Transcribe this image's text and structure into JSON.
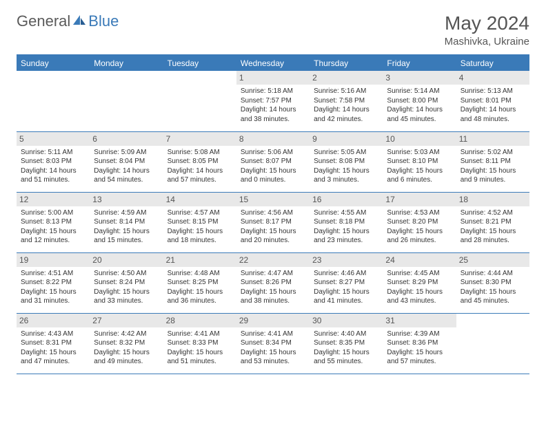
{
  "brand": {
    "part1": "General",
    "part2": "Blue"
  },
  "title": "May 2024",
  "location": "Mashivka, Ukraine",
  "colors": {
    "accent": "#3a7ab8",
    "header_bg": "#3a7ab8",
    "header_text": "#ffffff",
    "daynum_bg": "#e8e8e8",
    "text": "#333333",
    "muted": "#555555",
    "background": "#ffffff"
  },
  "dayNames": [
    "Sunday",
    "Monday",
    "Tuesday",
    "Wednesday",
    "Thursday",
    "Friday",
    "Saturday"
  ],
  "weeks": [
    [
      {
        "n": "",
        "sr": "",
        "ss": "",
        "dl": ""
      },
      {
        "n": "",
        "sr": "",
        "ss": "",
        "dl": ""
      },
      {
        "n": "",
        "sr": "",
        "ss": "",
        "dl": ""
      },
      {
        "n": "1",
        "sr": "Sunrise: 5:18 AM",
        "ss": "Sunset: 7:57 PM",
        "dl": "Daylight: 14 hours and 38 minutes."
      },
      {
        "n": "2",
        "sr": "Sunrise: 5:16 AM",
        "ss": "Sunset: 7:58 PM",
        "dl": "Daylight: 14 hours and 42 minutes."
      },
      {
        "n": "3",
        "sr": "Sunrise: 5:14 AM",
        "ss": "Sunset: 8:00 PM",
        "dl": "Daylight: 14 hours and 45 minutes."
      },
      {
        "n": "4",
        "sr": "Sunrise: 5:13 AM",
        "ss": "Sunset: 8:01 PM",
        "dl": "Daylight: 14 hours and 48 minutes."
      }
    ],
    [
      {
        "n": "5",
        "sr": "Sunrise: 5:11 AM",
        "ss": "Sunset: 8:03 PM",
        "dl": "Daylight: 14 hours and 51 minutes."
      },
      {
        "n": "6",
        "sr": "Sunrise: 5:09 AM",
        "ss": "Sunset: 8:04 PM",
        "dl": "Daylight: 14 hours and 54 minutes."
      },
      {
        "n": "7",
        "sr": "Sunrise: 5:08 AM",
        "ss": "Sunset: 8:05 PM",
        "dl": "Daylight: 14 hours and 57 minutes."
      },
      {
        "n": "8",
        "sr": "Sunrise: 5:06 AM",
        "ss": "Sunset: 8:07 PM",
        "dl": "Daylight: 15 hours and 0 minutes."
      },
      {
        "n": "9",
        "sr": "Sunrise: 5:05 AM",
        "ss": "Sunset: 8:08 PM",
        "dl": "Daylight: 15 hours and 3 minutes."
      },
      {
        "n": "10",
        "sr": "Sunrise: 5:03 AM",
        "ss": "Sunset: 8:10 PM",
        "dl": "Daylight: 15 hours and 6 minutes."
      },
      {
        "n": "11",
        "sr": "Sunrise: 5:02 AM",
        "ss": "Sunset: 8:11 PM",
        "dl": "Daylight: 15 hours and 9 minutes."
      }
    ],
    [
      {
        "n": "12",
        "sr": "Sunrise: 5:00 AM",
        "ss": "Sunset: 8:13 PM",
        "dl": "Daylight: 15 hours and 12 minutes."
      },
      {
        "n": "13",
        "sr": "Sunrise: 4:59 AM",
        "ss": "Sunset: 8:14 PM",
        "dl": "Daylight: 15 hours and 15 minutes."
      },
      {
        "n": "14",
        "sr": "Sunrise: 4:57 AM",
        "ss": "Sunset: 8:15 PM",
        "dl": "Daylight: 15 hours and 18 minutes."
      },
      {
        "n": "15",
        "sr": "Sunrise: 4:56 AM",
        "ss": "Sunset: 8:17 PM",
        "dl": "Daylight: 15 hours and 20 minutes."
      },
      {
        "n": "16",
        "sr": "Sunrise: 4:55 AM",
        "ss": "Sunset: 8:18 PM",
        "dl": "Daylight: 15 hours and 23 minutes."
      },
      {
        "n": "17",
        "sr": "Sunrise: 4:53 AM",
        "ss": "Sunset: 8:20 PM",
        "dl": "Daylight: 15 hours and 26 minutes."
      },
      {
        "n": "18",
        "sr": "Sunrise: 4:52 AM",
        "ss": "Sunset: 8:21 PM",
        "dl": "Daylight: 15 hours and 28 minutes."
      }
    ],
    [
      {
        "n": "19",
        "sr": "Sunrise: 4:51 AM",
        "ss": "Sunset: 8:22 PM",
        "dl": "Daylight: 15 hours and 31 minutes."
      },
      {
        "n": "20",
        "sr": "Sunrise: 4:50 AM",
        "ss": "Sunset: 8:24 PM",
        "dl": "Daylight: 15 hours and 33 minutes."
      },
      {
        "n": "21",
        "sr": "Sunrise: 4:48 AM",
        "ss": "Sunset: 8:25 PM",
        "dl": "Daylight: 15 hours and 36 minutes."
      },
      {
        "n": "22",
        "sr": "Sunrise: 4:47 AM",
        "ss": "Sunset: 8:26 PM",
        "dl": "Daylight: 15 hours and 38 minutes."
      },
      {
        "n": "23",
        "sr": "Sunrise: 4:46 AM",
        "ss": "Sunset: 8:27 PM",
        "dl": "Daylight: 15 hours and 41 minutes."
      },
      {
        "n": "24",
        "sr": "Sunrise: 4:45 AM",
        "ss": "Sunset: 8:29 PM",
        "dl": "Daylight: 15 hours and 43 minutes."
      },
      {
        "n": "25",
        "sr": "Sunrise: 4:44 AM",
        "ss": "Sunset: 8:30 PM",
        "dl": "Daylight: 15 hours and 45 minutes."
      }
    ],
    [
      {
        "n": "26",
        "sr": "Sunrise: 4:43 AM",
        "ss": "Sunset: 8:31 PM",
        "dl": "Daylight: 15 hours and 47 minutes."
      },
      {
        "n": "27",
        "sr": "Sunrise: 4:42 AM",
        "ss": "Sunset: 8:32 PM",
        "dl": "Daylight: 15 hours and 49 minutes."
      },
      {
        "n": "28",
        "sr": "Sunrise: 4:41 AM",
        "ss": "Sunset: 8:33 PM",
        "dl": "Daylight: 15 hours and 51 minutes."
      },
      {
        "n": "29",
        "sr": "Sunrise: 4:41 AM",
        "ss": "Sunset: 8:34 PM",
        "dl": "Daylight: 15 hours and 53 minutes."
      },
      {
        "n": "30",
        "sr": "Sunrise: 4:40 AM",
        "ss": "Sunset: 8:35 PM",
        "dl": "Daylight: 15 hours and 55 minutes."
      },
      {
        "n": "31",
        "sr": "Sunrise: 4:39 AM",
        "ss": "Sunset: 8:36 PM",
        "dl": "Daylight: 15 hours and 57 minutes."
      },
      {
        "n": "",
        "sr": "",
        "ss": "",
        "dl": ""
      }
    ]
  ]
}
